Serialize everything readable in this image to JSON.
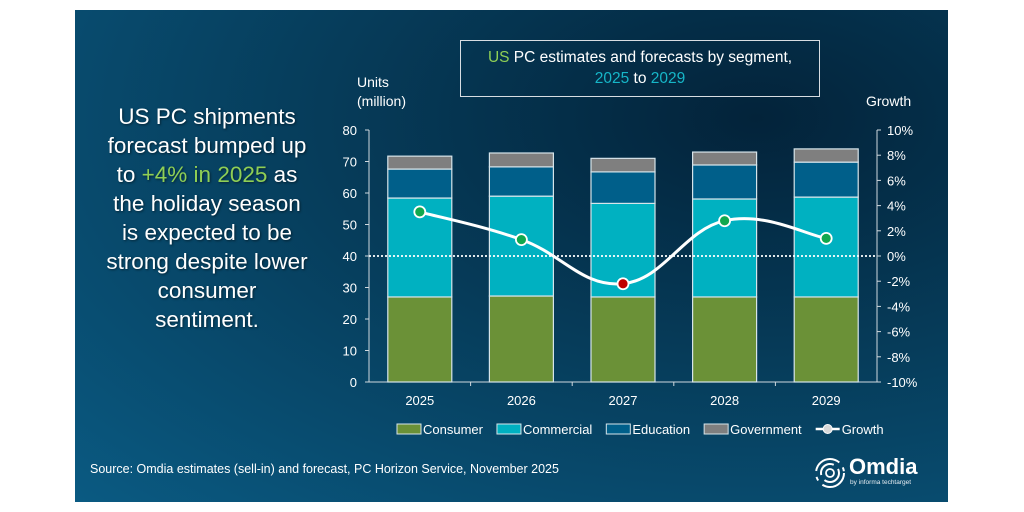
{
  "headline": {
    "lines": [
      {
        "parts": [
          {
            "text": "US PC shipments",
            "accent": false
          }
        ]
      },
      {
        "parts": [
          {
            "text": "forecast bumped up",
            "accent": false
          }
        ]
      },
      {
        "parts": [
          {
            "text": "to ",
            "accent": false
          },
          {
            "text": "+4% in 2025",
            "accent": true
          },
          {
            "text": " as",
            "accent": false
          }
        ]
      },
      {
        "parts": [
          {
            "text": "the holiday season",
            "accent": false
          }
        ]
      },
      {
        "parts": [
          {
            "text": "is expected to be",
            "accent": false
          }
        ]
      },
      {
        "parts": [
          {
            "text": "strong despite lower",
            "accent": false
          }
        ]
      },
      {
        "parts": [
          {
            "text": "consumer",
            "accent": false
          }
        ]
      },
      {
        "parts": [
          {
            "text": "sentiment.",
            "accent": false
          }
        ]
      }
    ]
  },
  "title_box": {
    "part1_green": "US",
    "part1_rest": " PC estimates and forecasts by segment,",
    "year_start": "2025",
    "mid": " to ",
    "year_end": "2029"
  },
  "source": "Source: Omdia estimates (sell-in) and forecast, PC Horizon Service, November 2025",
  "logo": {
    "name": "Omdia",
    "tagline": "by informa techtarget"
  },
  "colors": {
    "consumer": "#6b9137",
    "commercial": "#00b1c1",
    "education": "#005f8a",
    "government": "#7f7f7f",
    "growth_line": "#ffffff",
    "growth_positive": "#11a84e",
    "growth_negative": "#c00000",
    "accent_green": "#8fcf55",
    "accent_cyan": "#16b6c8"
  },
  "chart_data": {
    "type": "bar",
    "stacked": true,
    "title": "US PC estimates and forecasts by segment, 2025 to 2029",
    "categories": [
      "2025",
      "2026",
      "2027",
      "2028",
      "2029"
    ],
    "ylabel": "Units (million)",
    "ylabel_lines": [
      "Units",
      "(million)"
    ],
    "ylim": [
      0,
      80
    ],
    "yticks": [
      0,
      10,
      20,
      30,
      40,
      50,
      60,
      70,
      80
    ],
    "y2label": "Growth",
    "y2lim": [
      -10,
      10
    ],
    "y2ticks": [
      "-10%",
      "-8%",
      "-6%",
      "-4%",
      "-2%",
      "0%",
      "2%",
      "4%",
      "6%",
      "8%",
      "10%"
    ],
    "y2tick_values": [
      -10,
      -8,
      -6,
      -4,
      -2,
      0,
      2,
      4,
      6,
      8,
      10
    ],
    "zero_growth_reference": "dotted line at 0%",
    "series": [
      {
        "name": "Consumer",
        "values": [
          27.0,
          27.3,
          27.0,
          27.0,
          27.0
        ]
      },
      {
        "name": "Commercial",
        "values": [
          31.4,
          31.7,
          29.7,
          31.1,
          31.7
        ]
      },
      {
        "name": "Education",
        "values": [
          9.2,
          9.3,
          10.0,
          10.8,
          11.1
        ]
      },
      {
        "name": "Government",
        "values": [
          4.1,
          4.4,
          4.3,
          4.1,
          4.2
        ]
      }
    ],
    "line_series": {
      "name": "Growth",
      "axis": "right",
      "unit": "%",
      "values": [
        3.5,
        1.3,
        -2.2,
        2.8,
        1.4
      ]
    },
    "legend": {
      "position": "bottom",
      "items": [
        "Consumer",
        "Commercial",
        "Education",
        "Government",
        "Growth"
      ]
    },
    "grid": false
  }
}
